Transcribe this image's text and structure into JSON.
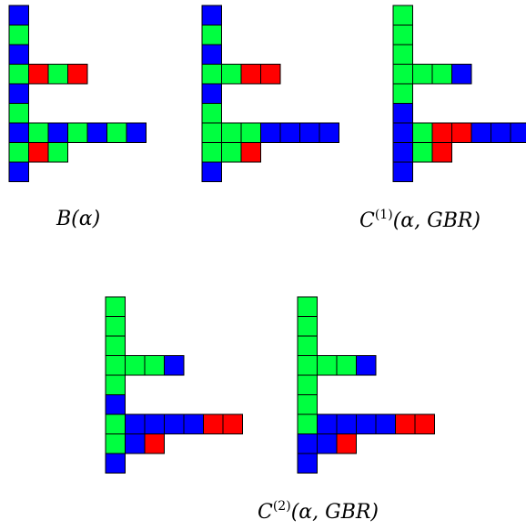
{
  "colors": {
    "G": "#00ff40",
    "B": "#0000ff",
    "R": "#ff0000",
    "outline": "#000000"
  },
  "figures": [
    {
      "id": "fig1",
      "rows": [
        [
          "B"
        ],
        [
          "G"
        ],
        [
          "B"
        ],
        [
          "G",
          "R",
          "G",
          "R"
        ],
        [
          "B"
        ],
        [
          "G"
        ],
        [
          "B",
          "G",
          "B",
          "G",
          "B",
          "G",
          "B"
        ],
        [
          "G",
          "R",
          "G"
        ],
        [
          "B"
        ]
      ]
    },
    {
      "id": "fig2",
      "rows": [
        [
          "B"
        ],
        [
          "G"
        ],
        [
          "B"
        ],
        [
          "G",
          "G",
          "R",
          "R"
        ],
        [
          "B"
        ],
        [
          "G"
        ],
        [
          "G",
          "G",
          "G",
          "B",
          "B",
          "B",
          "B"
        ],
        [
          "G",
          "G",
          "R"
        ],
        [
          "B"
        ]
      ]
    },
    {
      "id": "fig3",
      "rows": [
        [
          "G"
        ],
        [
          "G"
        ],
        [
          "G"
        ],
        [
          "G",
          "G",
          "G",
          "B"
        ],
        [
          "G"
        ],
        [
          "B"
        ],
        [
          "B",
          "G",
          "R",
          "R",
          "B",
          "B",
          "B"
        ],
        [
          "B",
          "G",
          "R"
        ],
        [
          "B"
        ]
      ]
    },
    {
      "id": "fig4",
      "rows": [
        [
          "G"
        ],
        [
          "G"
        ],
        [
          "G"
        ],
        [
          "G",
          "G",
          "G",
          "B"
        ],
        [
          "G"
        ],
        [
          "B"
        ],
        [
          "G",
          "B",
          "B",
          "B",
          "B",
          "R",
          "R"
        ],
        [
          "G",
          "B",
          "R"
        ],
        [
          "B"
        ]
      ]
    },
    {
      "id": "fig5",
      "rows": [
        [
          "G"
        ],
        [
          "G"
        ],
        [
          "G"
        ],
        [
          "G",
          "G",
          "G",
          "B"
        ],
        [
          "G"
        ],
        [
          "G"
        ],
        [
          "G",
          "B",
          "B",
          "B",
          "B",
          "R",
          "R"
        ],
        [
          "B",
          "B",
          "R"
        ],
        [
          "B"
        ]
      ]
    }
  ],
  "captions": {
    "b_alpha": {
      "letter": "B",
      "args": "(α)"
    },
    "c1": {
      "letter": "C",
      "sup": "(1)",
      "args": "(α, GBR)"
    },
    "c2": {
      "letter": "C",
      "sup": "(2)",
      "args": "(α, GBR)"
    }
  }
}
